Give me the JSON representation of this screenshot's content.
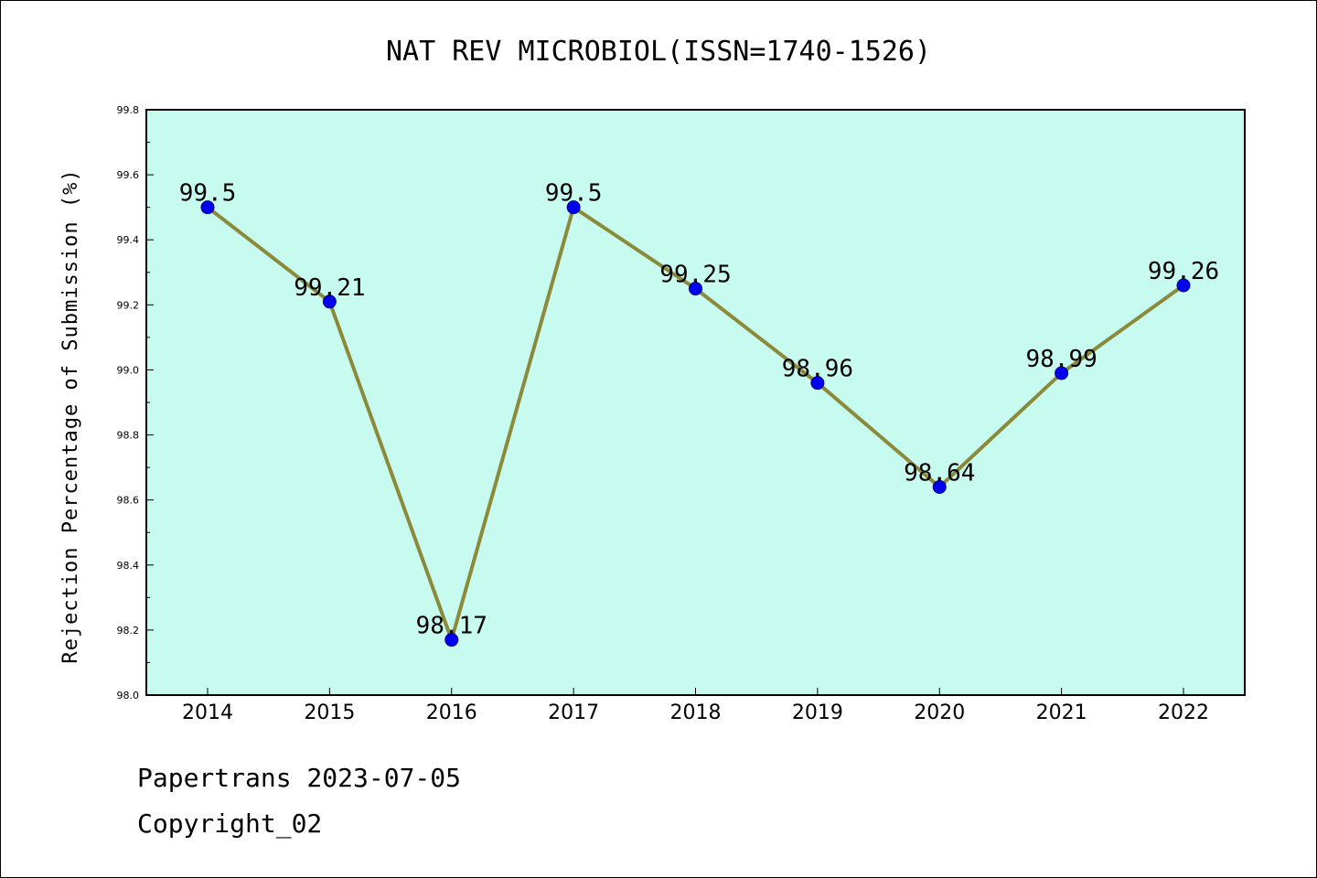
{
  "chart_data": {
    "type": "line",
    "title": "NAT REV MICROBIOL(ISSN=1740-1526)",
    "xlabel": "",
    "ylabel": "Rejection Percentage of Submission (%)",
    "categories": [
      "2014",
      "2015",
      "2016",
      "2017",
      "2018",
      "2019",
      "2020",
      "2021",
      "2022"
    ],
    "series": [
      {
        "name": "Rejection Percentage",
        "values": [
          99.5,
          99.21,
          98.17,
          99.5,
          99.25,
          98.96,
          98.64,
          98.99,
          99.26
        ],
        "labels": [
          "99.5",
          "99.21",
          "98.17",
          "99.5",
          "99.25",
          "98.96",
          "98.64",
          "98.99",
          "99.26"
        ]
      }
    ],
    "ylim": [
      98.0,
      99.8
    ],
    "yticks": [
      "98.0",
      "98.2",
      "98.4",
      "98.6",
      "98.8",
      "99.0",
      "99.2",
      "99.4",
      "99.6",
      "99.8"
    ],
    "grid": false,
    "colors": {
      "plot_bg": "#c8fbef",
      "line": "#8b8a3a",
      "marker": "#0000ee"
    }
  },
  "footer": {
    "line1": "Papertrans 2023-07-05",
    "line2": "Copyright_02"
  }
}
